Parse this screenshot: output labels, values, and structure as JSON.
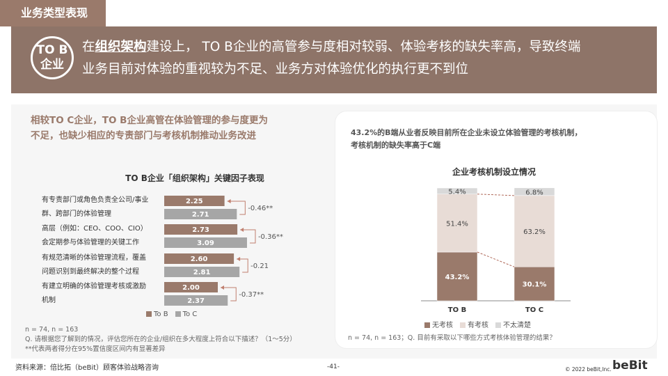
{
  "section_tag": "业务类型表现",
  "banner": {
    "badge_line1": "TO B",
    "badge_line2": "企业",
    "line1_prefix": "在",
    "line1_em": "组织架构",
    "line1_rest": "建设上， TO B企业的高管参与度相对较弱、体验考核的缺失率高，导致终端",
    "line2": "业务目前对体验的重视较为不足、业务方对体验优化的执行更不到位"
  },
  "left": {
    "heading_line1": "相较TO C企业，TO B企业高管在体验管理的参与度更为",
    "heading_line2": "不足，也缺少相应的专责部门与考核机制推动业务改进",
    "chart_title": "TO B企业「组织架构」关键因子表现",
    "rows": [
      {
        "label1": "有专责部门或角色负责全公司/事业",
        "label2": "群、跨部门的体验管理",
        "tob": "2.25",
        "toc": "2.71",
        "diff": "-0.46**"
      },
      {
        "label1": "高层（例如：CEO、COO、CIO）",
        "label2": "会定期参与体验管理的关键工作",
        "tob": "2.73",
        "toc": "3.09",
        "diff": "-0.36**"
      },
      {
        "label1": "有规范清晰的体验管理流程，覆盖",
        "label2": "问题识别到最终解决的整个过程",
        "tob": "2.60",
        "toc": "2.81",
        "diff": "-0.21"
      },
      {
        "label1": "有建立明确的体验管理考核或激励",
        "label2": "机制",
        "tob": "2.00",
        "toc": "2.37",
        "diff": "-0.37**"
      }
    ],
    "legend_tob": "To B",
    "legend_toc": "To C",
    "note1": "n = 74, n = 163",
    "note2": "Q. 请根据您了解到的情况，评估您所在的企业/组织在多大程度上符合以下描述？（1～5分）",
    "note3": "**代表两者得分在95%置信度区间内有显著差异"
  },
  "right": {
    "heading_line1": "43.2%的B端从业者反映目前所在企业未设立体验管理的考核机制，",
    "heading_line2": "考核机制的缺失率高于C端",
    "chart_title": "企业考核机制设立情况",
    "bars": [
      {
        "name": "TO B",
        "none": "43.2%",
        "has": "51.4%",
        "unclear": "5.4%"
      },
      {
        "name": "TO C",
        "none": "30.1%",
        "has": "63.2%",
        "unclear": "6.8%"
      }
    ],
    "legend": [
      "无考核",
      "有考核",
      "不太清楚"
    ],
    "note": "n = 74, n = 163；Q. 目前有采取以下哪些方式考核体验管理的结果？"
  },
  "chart_data": [
    {
      "type": "bar",
      "title": "TO B企业「组织架构」关键因子表现",
      "categories": [
        "有专责部门或角色负责全公司/事业群、跨部门的体验管理",
        "高层（例如：CEO、COO、CIO）会定期参与体验管理的关键工作",
        "有规范清晰的体验管理流程，覆盖问题识别到最终解决的整个过程",
        "有建立明确的体验管理考核或激励机制"
      ],
      "series": [
        {
          "name": "To B",
          "values": [
            2.25,
            2.73,
            2.6,
            2.0
          ]
        },
        {
          "name": "To C",
          "values": [
            2.71,
            3.09,
            2.81,
            2.37
          ]
        }
      ],
      "orientation": "horizontal"
    },
    {
      "type": "bar",
      "title": "企业考核机制设立情况",
      "categories": [
        "TO B",
        "TO C"
      ],
      "series": [
        {
          "name": "无考核",
          "values": [
            43.2,
            30.1
          ]
        },
        {
          "name": "有考核",
          "values": [
            51.4,
            63.2
          ]
        },
        {
          "name": "不太清楚",
          "values": [
            5.4,
            6.8
          ]
        }
      ],
      "stacked": true,
      "ylim": [
        0,
        100
      ]
    }
  ],
  "footer": {
    "source": "资料来源：倍比拓（beBit）顾客体验战略咨询",
    "page": "-41-",
    "copyright": "© 2022 beBit,Inc.",
    "logo": "beBit"
  },
  "colors": {
    "brown": "#9a7a6b",
    "dark_brown": "#8e7468",
    "gray_bar": "#a6a6a6",
    "light": "#e8dcd6",
    "pale": "#d9d9d9"
  }
}
